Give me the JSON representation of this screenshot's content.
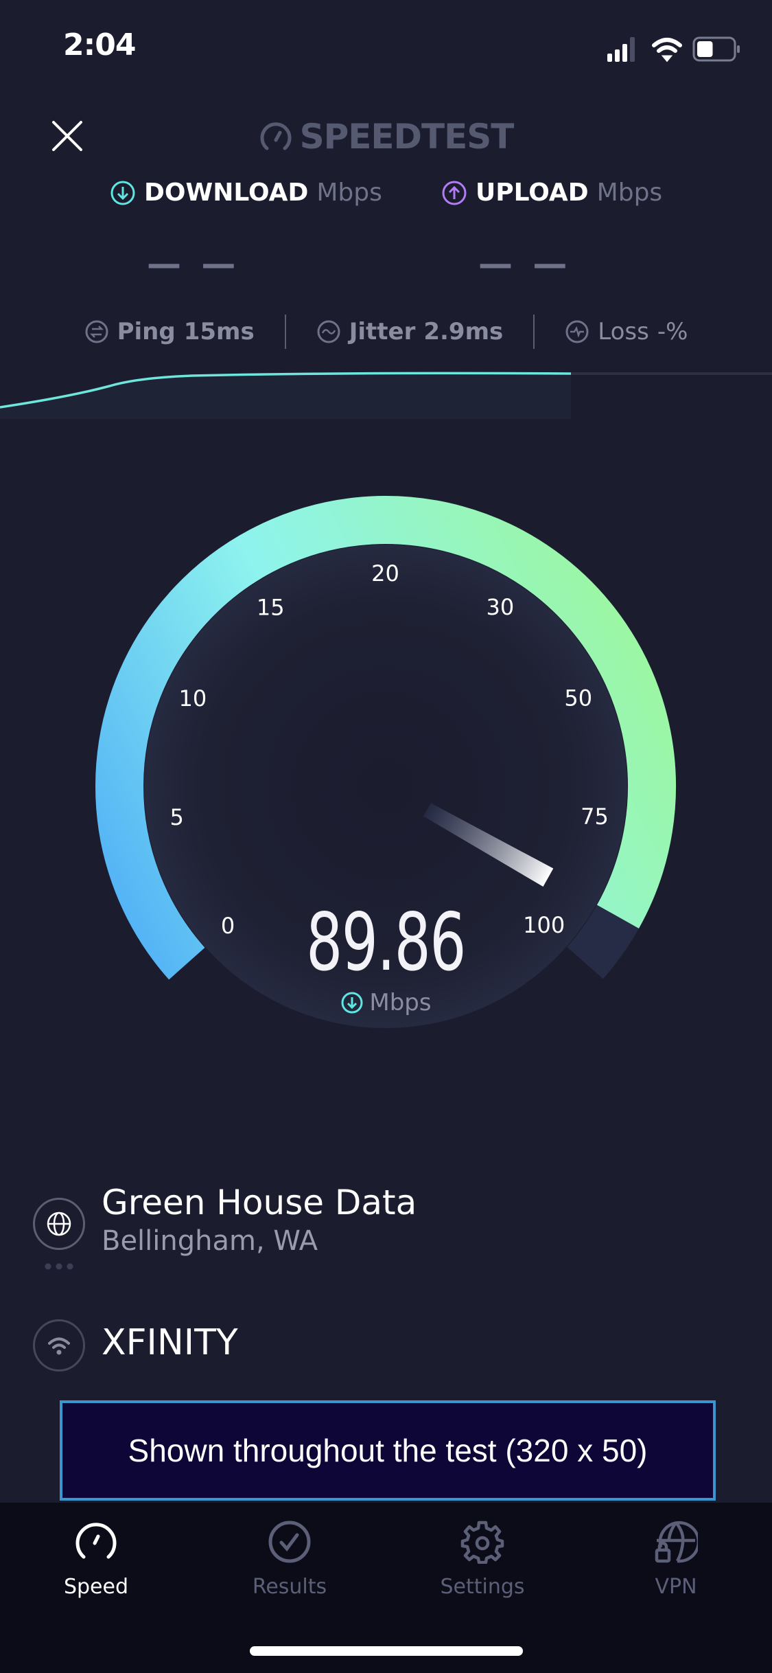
{
  "status_bar": {
    "time": "2:04",
    "battery_level": 0.45
  },
  "header": {
    "logo": "SPEEDTEST",
    "close_icon": "close-icon"
  },
  "results": {
    "download": {
      "label": "DOWNLOAD",
      "unit": "Mbps",
      "value": "— —",
      "color": "#5ee6e0"
    },
    "upload": {
      "label": "UPLOAD",
      "unit": "Mbps",
      "value": "— —",
      "color": "#b27cf5"
    }
  },
  "stats": {
    "ping": {
      "label": "Ping",
      "value": "15",
      "unit": "ms"
    },
    "jitter": {
      "label": "Jitter",
      "value": "2.9",
      "unit": "ms"
    },
    "loss": {
      "label": "Loss",
      "value": "-",
      "unit": "%"
    }
  },
  "gauge": {
    "labels": [
      "0",
      "5",
      "10",
      "15",
      "20",
      "30",
      "50",
      "75",
      "100"
    ],
    "value": 89.86,
    "value_text": "89.86",
    "unit": "Mbps",
    "colors": {
      "start": "#4aa9f7",
      "mid": "#8ef3ee",
      "end": "#9cf7a0",
      "track": "#262c45"
    }
  },
  "server": {
    "name": "Green House Data",
    "location": "Bellingham, WA"
  },
  "isp": {
    "name": "XFINITY"
  },
  "ad": {
    "text": "Shown throughout the test (320 x 50)"
  },
  "tabs": [
    {
      "label": "Speed",
      "icon": "speedometer-icon",
      "active": true
    },
    {
      "label": "Results",
      "icon": "check-circle-icon",
      "active": false
    },
    {
      "label": "Settings",
      "icon": "gear-icon",
      "active": false
    },
    {
      "label": "VPN",
      "icon": "globe-lock-icon",
      "active": false
    }
  ]
}
